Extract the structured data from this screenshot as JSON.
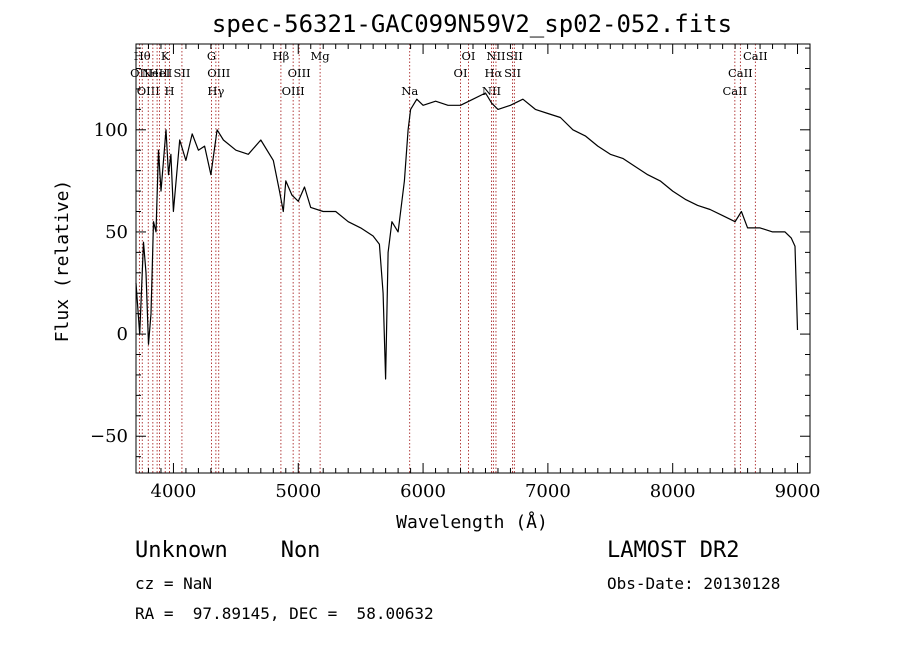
{
  "chart_data": {
    "type": "line",
    "title": "spec-56321-GAC099N59V2_sp02-052.fits",
    "xlabel": "Wavelength (Å)",
    "ylabel": "Flux (relative)",
    "xlim": [
      3700,
      9100
    ],
    "ylim": [
      -68,
      142
    ],
    "x_ticks": [
      4000,
      5000,
      6000,
      7000,
      8000,
      9000
    ],
    "y_ticks": [
      -50,
      0,
      50,
      100
    ],
    "x_tick_labels": [
      "4000",
      "5000",
      "6000",
      "7000",
      "8000",
      "9000"
    ],
    "y_tick_labels": [
      "−50",
      "0",
      "50",
      "100"
    ],
    "series": [
      {
        "name": "flux",
        "x": [
          3700,
          3730,
          3760,
          3780,
          3800,
          3820,
          3840,
          3860,
          3880,
          3900,
          3920,
          3940,
          3960,
          3980,
          4000,
          4050,
          4100,
          4150,
          4200,
          4250,
          4300,
          4350,
          4400,
          4500,
          4600,
          4700,
          4800,
          4850,
          4880,
          4900,
          4950,
          5000,
          5050,
          5100,
          5200,
          5300,
          5400,
          5500,
          5600,
          5650,
          5680,
          5700,
          5720,
          5750,
          5800,
          5850,
          5880,
          5900,
          5950,
          6000,
          6100,
          6200,
          6300,
          6400,
          6500,
          6550,
          6600,
          6700,
          6800,
          6900,
          7000,
          7100,
          7200,
          7300,
          7400,
          7500,
          7600,
          7700,
          7800,
          7900,
          8000,
          8100,
          8200,
          8300,
          8400,
          8500,
          8550,
          8600,
          8700,
          8800,
          8900,
          8950,
          8980,
          9000
        ],
        "values": [
          25,
          0,
          45,
          30,
          -5,
          10,
          55,
          50,
          90,
          70,
          85,
          100,
          78,
          88,
          60,
          95,
          85,
          98,
          90,
          92,
          78,
          100,
          95,
          90,
          88,
          95,
          85,
          70,
          60,
          75,
          68,
          65,
          72,
          62,
          60,
          60,
          55,
          52,
          48,
          44,
          20,
          -22,
          40,
          55,
          50,
          75,
          100,
          110,
          115,
          112,
          114,
          112,
          112,
          115,
          118,
          113,
          110,
          112,
          115,
          110,
          108,
          106,
          100,
          97,
          92,
          88,
          86,
          82,
          78,
          75,
          70,
          66,
          63,
          61,
          58,
          55,
          60,
          52,
          52,
          50,
          50,
          47,
          43,
          2
        ]
      }
    ],
    "emission_lines": [
      {
        "wave": 3727,
        "label": "OII",
        "row": 2
      },
      {
        "wave": 3750,
        "label": "Hθ",
        "row": 1
      },
      {
        "wave": 3798,
        "label": "OIII",
        "row": 3
      },
      {
        "wave": 3835,
        "label": "",
        "row": 0
      },
      {
        "wave": 3869,
        "label": "NeIII",
        "row": 2
      },
      {
        "wave": 3889,
        "label": "HeI",
        "row": 2
      },
      {
        "wave": 3934,
        "label": "K",
        "row": 1
      },
      {
        "wave": 3969,
        "label": "H",
        "row": 3
      },
      {
        "wave": 4068,
        "label": "SII",
        "row": 2
      },
      {
        "wave": 4305,
        "label": "G",
        "row": 1
      },
      {
        "wave": 4340,
        "label": "Hγ",
        "row": 3
      },
      {
        "wave": 4363,
        "label": "OIII",
        "row": 2
      },
      {
        "wave": 4861,
        "label": "Hβ",
        "row": 1
      },
      {
        "wave": 4959,
        "label": "OIII",
        "row": 3
      },
      {
        "wave": 5007,
        "label": "OIII",
        "row": 2
      },
      {
        "wave": 5175,
        "label": "Mg",
        "row": 1
      },
      {
        "wave": 5893,
        "label": "Na",
        "row": 3
      },
      {
        "wave": 6300,
        "label": "OI",
        "row": 2
      },
      {
        "wave": 6364,
        "label": "OI",
        "row": 1
      },
      {
        "wave": 6548,
        "label": "NII",
        "row": 3
      },
      {
        "wave": 6563,
        "label": "Hα",
        "row": 2
      },
      {
        "wave": 6584,
        "label": "NII",
        "row": 1
      },
      {
        "wave": 6717,
        "label": "SII",
        "row": 2
      },
      {
        "wave": 6731,
        "label": "SII",
        "row": 1
      },
      {
        "wave": 8498,
        "label": "CaII",
        "row": 3
      },
      {
        "wave": 8542,
        "label": "CaII",
        "row": 2
      },
      {
        "wave": 8662,
        "label": "CaII",
        "row": 1
      }
    ],
    "line_color": "#000000",
    "marker_color": "#a01010"
  },
  "info": {
    "classification": "Unknown    Non",
    "survey": "LAMOST DR2",
    "cz": "cz = NaN",
    "obs_date": "Obs-Date: 20130128",
    "coords": "RA =  97.89145, DEC =  58.00632"
  }
}
